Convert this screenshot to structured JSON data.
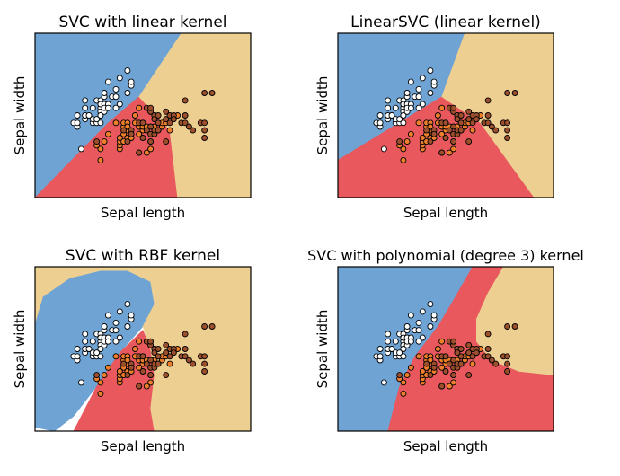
{
  "colors": {
    "class_0": "#6fa3d3",
    "class_1": "#e8585c",
    "class_2": "#edcf91",
    "point_0": "#ffffff",
    "point_1": "#ee7f2b",
    "point_2": "#9c4f2c",
    "frame": "#000000"
  },
  "chart_data": [
    {
      "type": "scatter",
      "title": "SVC with linear kernel",
      "xlabel": "Sepal length",
      "ylabel": "Sepal width",
      "xlim": [
        3.3,
        8.9
      ],
      "ylim": [
        1.0,
        5.4
      ],
      "grid": false,
      "regions": [
        {
          "name": "0",
          "polygon": [
            [
              3.3,
              1.0
            ],
            [
              3.3,
              5.4
            ],
            [
              6.2,
              5.4
            ],
            [
              7.1,
              5.4
            ],
            [
              6.0,
              3.7
            ],
            [
              5.2,
              3.0
            ],
            [
              3.3,
              1.0
            ]
          ]
        },
        {
          "name": "1",
          "polygon": [
            [
              3.3,
              1.0
            ],
            [
              5.2,
              3.0
            ],
            [
              6.0,
              3.7
            ],
            [
              6.8,
              2.8
            ],
            [
              7.0,
              1.0
            ]
          ]
        },
        {
          "name": "2",
          "polygon": [
            [
              7.0,
              1.0
            ],
            [
              6.8,
              2.8
            ],
            [
              6.0,
              3.7
            ],
            [
              7.1,
              5.4
            ],
            [
              8.9,
              5.4
            ],
            [
              8.9,
              1.0
            ]
          ]
        }
      ]
    },
    {
      "type": "scatter",
      "title": "LinearSVC (linear kernel)",
      "xlabel": "Sepal length",
      "ylabel": "Sepal width",
      "xlim": [
        3.3,
        8.9
      ],
      "ylim": [
        1.0,
        5.4
      ],
      "grid": false,
      "regions": [
        {
          "name": "0",
          "polygon": [
            [
              3.3,
              2.0
            ],
            [
              3.3,
              5.4
            ],
            [
              6.6,
              5.4
            ],
            [
              6.0,
              3.7
            ],
            [
              3.3,
              2.0
            ]
          ]
        },
        {
          "name": "1",
          "polygon": [
            [
              3.3,
              1.0
            ],
            [
              3.3,
              2.0
            ],
            [
              6.0,
              3.7
            ],
            [
              7.0,
              3.0
            ],
            [
              8.4,
              1.0
            ]
          ]
        },
        {
          "name": "2",
          "polygon": [
            [
              8.4,
              1.0
            ],
            [
              7.0,
              3.0
            ],
            [
              6.0,
              3.7
            ],
            [
              6.6,
              5.4
            ],
            [
              8.9,
              5.4
            ],
            [
              8.9,
              1.0
            ]
          ]
        }
      ]
    },
    {
      "type": "scatter",
      "title": "SVC with RBF kernel",
      "xlabel": "Sepal length",
      "ylabel": "Sepal width",
      "xlim": [
        3.3,
        8.9
      ],
      "ylim": [
        1.0,
        5.4
      ],
      "grid": false,
      "regions": [
        {
          "name": "0",
          "polygon": [
            [
              3.3,
              3.9
            ],
            [
              3.5,
              4.6
            ],
            [
              4.2,
              5.1
            ],
            [
              5.0,
              5.3
            ],
            [
              5.7,
              5.3
            ],
            [
              6.3,
              5.0
            ],
            [
              6.4,
              4.4
            ],
            [
              6.1,
              3.8
            ],
            [
              5.5,
              3.1
            ],
            [
              4.9,
              2.2
            ],
            [
              4.3,
              1.4
            ],
            [
              3.8,
              1.0
            ],
            [
              3.3,
              1.1
            ]
          ]
        },
        {
          "name": "1",
          "polygon": [
            [
              4.3,
              1.0
            ],
            [
              4.9,
              2.2
            ],
            [
              5.5,
              3.1
            ],
            [
              6.1,
              3.7
            ],
            [
              6.3,
              3.2
            ],
            [
              6.4,
              2.5
            ],
            [
              6.3,
              1.6
            ],
            [
              6.4,
              1.0
            ]
          ]
        },
        {
          "name": "2",
          "polygon": [
            [
              3.3,
              5.4
            ],
            [
              3.3,
              3.9
            ],
            [
              3.5,
              4.6
            ],
            [
              4.2,
              5.1
            ],
            [
              5.0,
              5.3
            ],
            [
              5.7,
              5.3
            ],
            [
              6.3,
              5.0
            ],
            [
              6.4,
              4.4
            ],
            [
              6.1,
              3.8
            ],
            [
              6.3,
              3.2
            ],
            [
              6.4,
              2.5
            ],
            [
              6.3,
              1.6
            ],
            [
              6.4,
              1.0
            ],
            [
              8.9,
              1.0
            ],
            [
              8.9,
              5.4
            ]
          ]
        }
      ]
    },
    {
      "type": "scatter",
      "title": "SVC with polynomial (degree 3) kernel",
      "xlabel": "Sepal length",
      "ylabel": "Sepal width",
      "xlim": [
        3.3,
        8.9
      ],
      "ylim": [
        1.0,
        5.4
      ],
      "grid": false,
      "regions": [
        {
          "name": "0",
          "polygon": [
            [
              3.3,
              1.0
            ],
            [
              3.3,
              5.4
            ],
            [
              6.8,
              5.4
            ],
            [
              6.3,
              4.5
            ],
            [
              5.9,
              3.8
            ],
            [
              5.3,
              3.0
            ],
            [
              4.9,
              2.2
            ],
            [
              4.6,
              1.0
            ]
          ]
        },
        {
          "name": "1",
          "polygon": [
            [
              4.6,
              1.0
            ],
            [
              4.9,
              2.2
            ],
            [
              5.3,
              3.0
            ],
            [
              5.9,
              3.8
            ],
            [
              6.3,
              4.5
            ],
            [
              6.8,
              5.4
            ],
            [
              7.6,
              5.4
            ],
            [
              7.2,
              4.7
            ],
            [
              6.9,
              4.0
            ],
            [
              6.9,
              3.4
            ],
            [
              7.3,
              2.9
            ],
            [
              8.0,
              2.6
            ],
            [
              8.9,
              2.5
            ],
            [
              8.9,
              1.0
            ]
          ]
        },
        {
          "name": "2",
          "polygon": [
            [
              7.6,
              5.4
            ],
            [
              7.2,
              4.7
            ],
            [
              6.9,
              4.0
            ],
            [
              6.9,
              3.4
            ],
            [
              7.3,
              2.9
            ],
            [
              8.0,
              2.6
            ],
            [
              8.9,
              2.5
            ],
            [
              8.9,
              5.4
            ]
          ]
        }
      ]
    }
  ],
  "points": [
    [
      4.3,
      3.0,
      0
    ],
    [
      4.4,
      2.9,
      0
    ],
    [
      4.4,
      3.0,
      0
    ],
    [
      4.4,
      3.2,
      0
    ],
    [
      4.5,
      2.3,
      0
    ],
    [
      4.6,
      3.1,
      0
    ],
    [
      4.6,
      3.4,
      0
    ],
    [
      4.6,
      3.6,
      0
    ],
    [
      4.6,
      3.2,
      0
    ],
    [
      4.7,
      3.2,
      0
    ],
    [
      4.8,
      3.4,
      0
    ],
    [
      4.8,
      3.0,
      0
    ],
    [
      4.8,
      3.1,
      0
    ],
    [
      4.9,
      3.0,
      0
    ],
    [
      4.9,
      3.1,
      0
    ],
    [
      4.9,
      3.6,
      0
    ],
    [
      5.0,
      3.6,
      0
    ],
    [
      5.0,
      3.4,
      0
    ],
    [
      5.0,
      3.0,
      0
    ],
    [
      5.0,
      3.3,
      0
    ],
    [
      5.0,
      3.2,
      0
    ],
    [
      5.0,
      3.5,
      0
    ],
    [
      5.1,
      3.5,
      0
    ],
    [
      5.1,
      3.7,
      0
    ],
    [
      5.1,
      3.3,
      0
    ],
    [
      5.1,
      3.8,
      0
    ],
    [
      5.1,
      3.4,
      0
    ],
    [
      5.2,
      3.5,
      0
    ],
    [
      5.2,
      3.4,
      0
    ],
    [
      5.2,
      4.1,
      0
    ],
    [
      5.3,
      3.7,
      0
    ],
    [
      5.4,
      3.9,
      0
    ],
    [
      5.4,
      3.7,
      0
    ],
    [
      5.4,
      3.4,
      0
    ],
    [
      5.5,
      4.2,
      0
    ],
    [
      5.5,
      3.5,
      0
    ],
    [
      5.7,
      4.4,
      0
    ],
    [
      5.7,
      3.8,
      0
    ],
    [
      5.8,
      4.0,
      0
    ],
    [
      5.8,
      4.1,
      0
    ],
    [
      4.9,
      2.4,
      1
    ],
    [
      5.0,
      2.0,
      1
    ],
    [
      5.0,
      2.3,
      1
    ],
    [
      5.1,
      2.5,
      1
    ],
    [
      5.2,
      2.7,
      1
    ],
    [
      5.4,
      3.0,
      1
    ],
    [
      5.5,
      2.3,
      1
    ],
    [
      5.5,
      2.4,
      1
    ],
    [
      5.5,
      2.5,
      1
    ],
    [
      5.5,
      2.6,
      1
    ],
    [
      5.6,
      2.9,
      1
    ],
    [
      5.6,
      2.5,
      1
    ],
    [
      5.6,
      3.0,
      1
    ],
    [
      5.6,
      2.7,
      1
    ],
    [
      5.7,
      2.8,
      1
    ],
    [
      5.7,
      2.6,
      1
    ],
    [
      5.7,
      3.0,
      1
    ],
    [
      5.7,
      2.9,
      1
    ],
    [
      5.8,
      2.7,
      1
    ],
    [
      5.8,
      2.6,
      1
    ],
    [
      5.9,
      3.0,
      1
    ],
    [
      5.9,
      3.2,
      1
    ],
    [
      6.0,
      2.2,
      1
    ],
    [
      6.0,
      2.9,
      1
    ],
    [
      6.0,
      2.7,
      1
    ],
    [
      6.0,
      3.4,
      1
    ],
    [
      6.1,
      2.8,
      1
    ],
    [
      6.1,
      3.0,
      1
    ],
    [
      6.1,
      2.9,
      1
    ],
    [
      6.2,
      2.2,
      1
    ],
    [
      6.2,
      2.9,
      1
    ],
    [
      6.3,
      3.3,
      1
    ],
    [
      6.3,
      2.5,
      1
    ],
    [
      6.3,
      2.3,
      1
    ],
    [
      6.4,
      3.2,
      1
    ],
    [
      6.4,
      2.9,
      1
    ],
    [
      6.5,
      2.8,
      1
    ],
    [
      6.6,
      2.9,
      1
    ],
    [
      6.6,
      3.0,
      1
    ],
    [
      6.7,
      3.1,
      1
    ],
    [
      6.7,
      3.0,
      1
    ],
    [
      6.8,
      2.8,
      1
    ],
    [
      6.9,
      3.1,
      1
    ],
    [
      7.0,
      3.2,
      1
    ],
    [
      4.9,
      2.5,
      2
    ],
    [
      5.6,
      2.8,
      2
    ],
    [
      5.7,
      2.5,
      2
    ],
    [
      5.8,
      2.8,
      2
    ],
    [
      5.8,
      2.7,
      2
    ],
    [
      6.0,
      2.2,
      2
    ],
    [
      6.0,
      3.0,
      2
    ],
    [
      6.1,
      3.0,
      2
    ],
    [
      6.1,
      2.6,
      2
    ],
    [
      6.2,
      2.8,
      2
    ],
    [
      6.2,
      3.4,
      2
    ],
    [
      6.3,
      3.3,
      2
    ],
    [
      6.3,
      2.9,
      2
    ],
    [
      6.3,
      2.7,
      2
    ],
    [
      6.3,
      2.5,
      2
    ],
    [
      6.3,
      3.4,
      2
    ],
    [
      6.4,
      2.7,
      2
    ],
    [
      6.4,
      3.2,
      2
    ],
    [
      6.4,
      2.8,
      2
    ],
    [
      6.4,
      3.1,
      2
    ],
    [
      6.5,
      3.0,
      2
    ],
    [
      6.5,
      3.2,
      2
    ],
    [
      6.5,
      2.8,
      2
    ],
    [
      6.7,
      2.5,
      2
    ],
    [
      6.7,
      3.3,
      2
    ],
    [
      6.7,
      3.1,
      2
    ],
    [
      6.8,
      3.0,
      2
    ],
    [
      6.8,
      3.2,
      2
    ],
    [
      6.9,
      3.2,
      2
    ],
    [
      6.9,
      3.1,
      2
    ],
    [
      7.1,
      3.0,
      2
    ],
    [
      7.2,
      3.6,
      2
    ],
    [
      7.2,
      3.2,
      2
    ],
    [
      7.2,
      3.0,
      2
    ],
    [
      7.3,
      2.9,
      2
    ],
    [
      7.4,
      2.8,
      2
    ],
    [
      7.6,
      3.0,
      2
    ],
    [
      7.7,
      3.8,
      2
    ],
    [
      7.7,
      2.6,
      2
    ],
    [
      7.7,
      2.8,
      2
    ],
    [
      7.7,
      3.0,
      2
    ],
    [
      7.9,
      3.8,
      2
    ]
  ]
}
